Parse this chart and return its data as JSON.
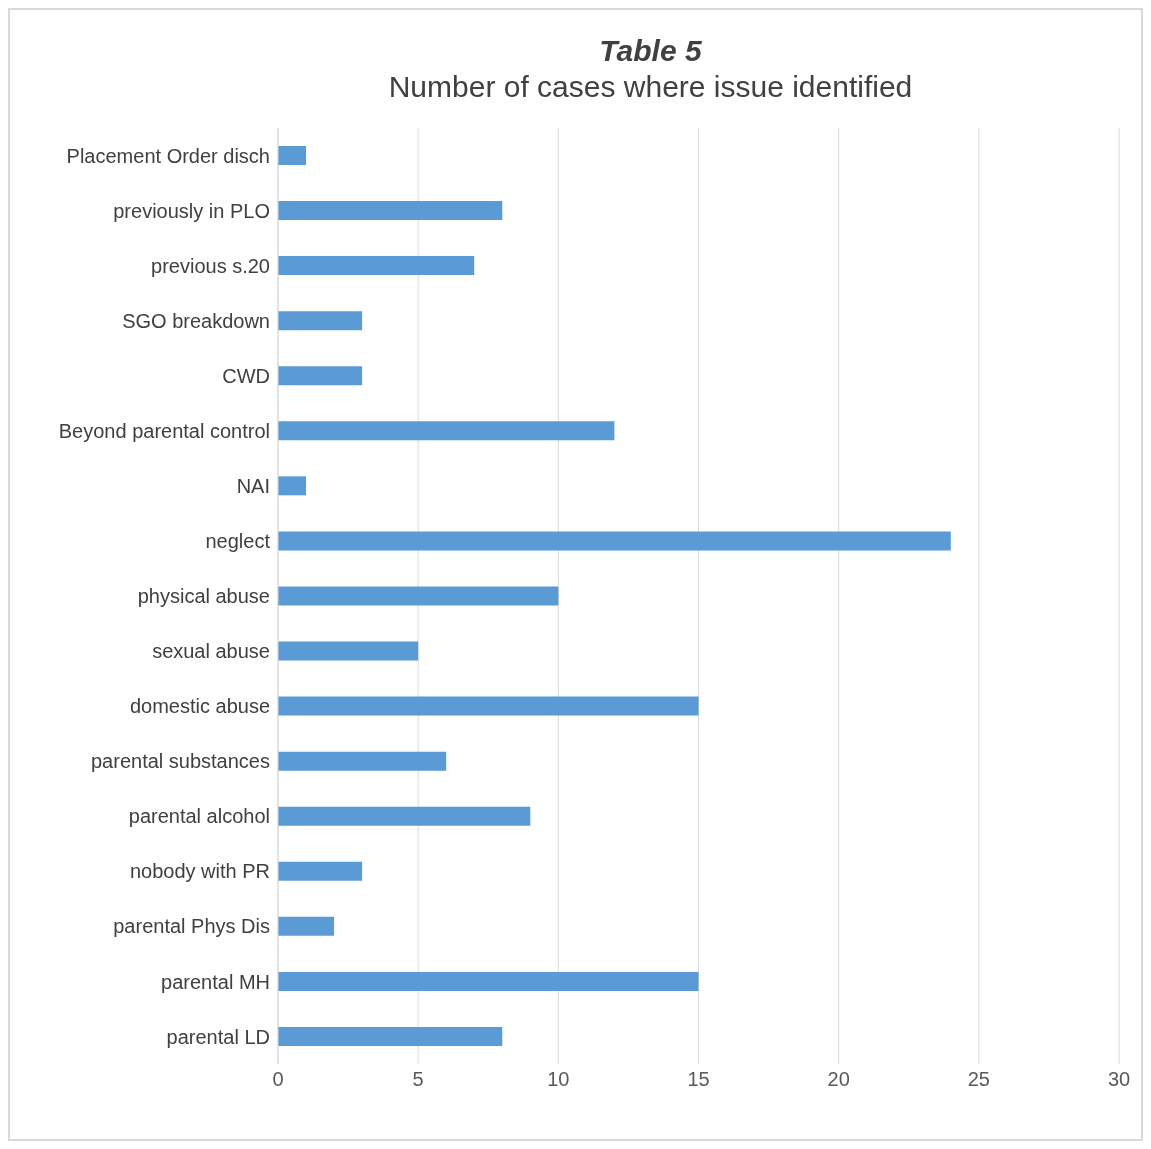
{
  "chart_data": {
    "type": "bar",
    "orientation": "horizontal",
    "title": "Table 5",
    "subtitle": "Number of cases where issue identified",
    "categories": [
      "Placement Order disch",
      "previously in PLO",
      "previous s.20",
      "SGO breakdown",
      "CWD",
      "Beyond parental control",
      "NAI",
      "neglect",
      "physical abuse",
      "sexual abuse",
      "domestic abuse",
      "parental substances",
      "parental alcohol",
      "nobody with PR",
      "parental Phys Dis",
      "parental MH",
      "parental LD"
    ],
    "values": [
      1,
      8,
      7,
      3,
      3,
      12,
      1,
      24,
      10,
      5,
      15,
      6,
      9,
      3,
      2,
      15,
      8
    ],
    "color": "#5b9bd5",
    "xlim": [
      0,
      30
    ],
    "xticks": [
      0,
      5,
      10,
      15,
      20,
      25,
      30
    ],
    "grid": "x",
    "legend": false
  }
}
